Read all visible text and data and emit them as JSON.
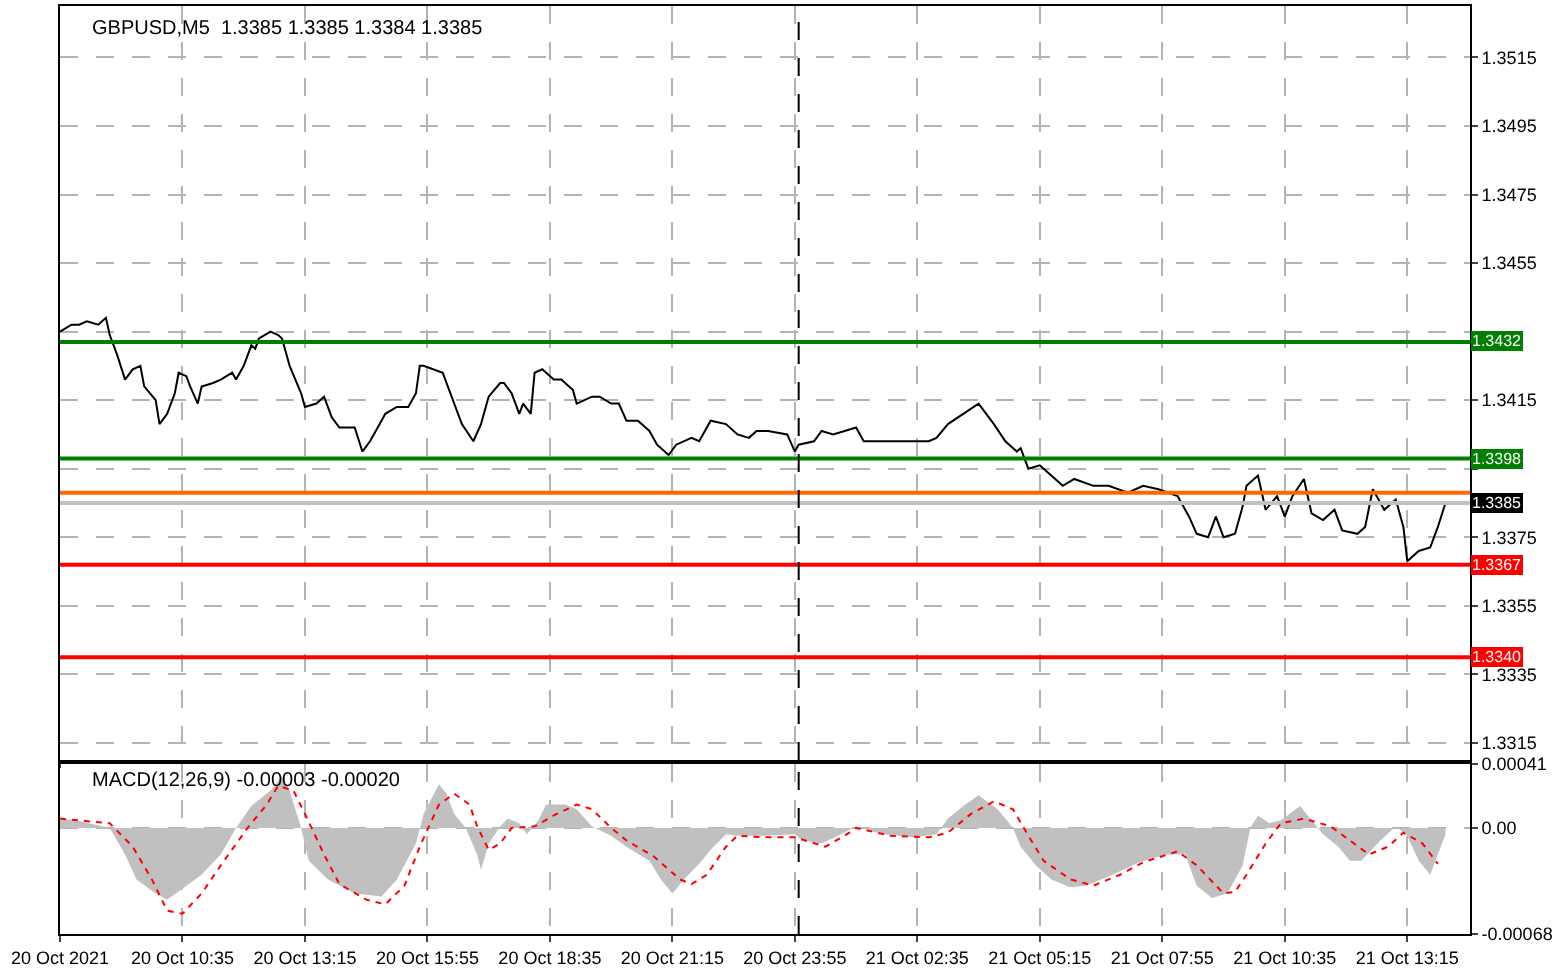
{
  "chart_data": [
    {
      "type": "line",
      "title": "GBPUSD,M5  1.3385 1.3385 1.3384 1.3385",
      "xlim": [
        "2021-10-20T07:55",
        "2021-10-21T14:37"
      ],
      "ylim": [
        1.331,
        1.353
      ],
      "xticks": [
        {
          "value": "2021-10-20T07:55",
          "label": null
        },
        {
          "value": "2021-10-20T10:35",
          "label": null
        },
        {
          "value": "2021-10-20T13:15",
          "label": null
        },
        {
          "value": "2021-10-20T15:55",
          "label": null
        },
        {
          "value": "2021-10-20T18:35",
          "label": null
        },
        {
          "value": "2021-10-20T21:15",
          "label": null
        },
        {
          "value": "2021-10-20T23:55",
          "label": null
        },
        {
          "value": "2021-10-21T02:35",
          "label": null
        },
        {
          "value": "2021-10-21T05:15",
          "label": null
        },
        {
          "value": "2021-10-21T07:55",
          "label": null
        },
        {
          "value": "2021-10-21T10:35",
          "label": null
        },
        {
          "value": "2021-10-21T13:15",
          "label": null
        }
      ],
      "yticks": [
        1.3515,
        1.3495,
        1.3475,
        1.3455,
        {
          "value": 1.3435,
          "label": null
        },
        1.3415,
        {
          "value": 1.3395,
          "label": null
        },
        1.3375,
        1.3355,
        1.3335,
        1.3315
      ],
      "tick_labels": "y",
      "grid": true,
      "series": [
        {
          "color": "#000000",
          "x": [
            "2021-10-20T07:55",
            "2021-10-20T08:10",
            "2021-10-20T08:20",
            "2021-10-20T08:30",
            "2021-10-20T08:45",
            "2021-10-20T08:55",
            "2021-10-20T09:00",
            "2021-10-20T09:10",
            "2021-10-20T09:20",
            "2021-10-20T09:30",
            "2021-10-20T09:40",
            "2021-10-20T09:45",
            "2021-10-20T10:00",
            "2021-10-20T10:05",
            "2021-10-20T10:15",
            "2021-10-20T10:25",
            "2021-10-20T10:30",
            "2021-10-20T10:40",
            "2021-10-20T10:45",
            "2021-10-20T10:55",
            "2021-10-20T11:00",
            "2021-10-20T11:15",
            "2021-10-20T11:25",
            "2021-10-20T11:40",
            "2021-10-20T11:45",
            "2021-10-20T11:55",
            "2021-10-20T12:05",
            "2021-10-20T12:10",
            "2021-10-20T12:15",
            "2021-10-20T12:30",
            "2021-10-20T12:40",
            "2021-10-20T12:45",
            "2021-10-20T12:55",
            "2021-10-20T13:10",
            "2021-10-20T13:15",
            "2021-10-20T13:30",
            "2021-10-20T13:40",
            "2021-10-20T13:50",
            "2021-10-20T14:00",
            "2021-10-20T14:20",
            "2021-10-20T14:30",
            "2021-10-20T14:40",
            "2021-10-20T14:55",
            "2021-10-20T15:00",
            "2021-10-20T15:15",
            "2021-10-20T15:30",
            "2021-10-20T15:40",
            "2021-10-20T15:45",
            "2021-10-20T15:50",
            "2021-10-20T16:15",
            "2021-10-20T16:25",
            "2021-10-20T16:40",
            "2021-10-20T16:55",
            "2021-10-20T17:05",
            "2021-10-20T17:15",
            "2021-10-20T17:30",
            "2021-10-20T17:35",
            "2021-10-20T17:45",
            "2021-10-20T17:55",
            "2021-10-20T18:00",
            "2021-10-20T18:10",
            "2021-10-20T18:15",
            "2021-10-20T18:25",
            "2021-10-20T18:40",
            "2021-10-20T18:50",
            "2021-10-20T19:00",
            "2021-10-20T19:05",
            "2021-10-20T19:10",
            "2021-10-20T19:30",
            "2021-10-20T19:40",
            "2021-10-20T19:55",
            "2021-10-20T20:05",
            "2021-10-20T20:15",
            "2021-10-20T20:30",
            "2021-10-20T20:45",
            "2021-10-20T20:55",
            "2021-10-20T21:10",
            "2021-10-20T21:20",
            "2021-10-20T21:40",
            "2021-10-20T21:50",
            "2021-10-20T22:05",
            "2021-10-20T22:25",
            "2021-10-20T22:40",
            "2021-10-20T22:55",
            "2021-10-20T23:05",
            "2021-10-20T23:20",
            "2021-10-20T23:45",
            "2021-10-20T23:55",
            "2021-10-21T00:00",
            "2021-10-21T00:20",
            "2021-10-21T00:30",
            "2021-10-21T00:45",
            "2021-10-21T01:00",
            "2021-10-21T01:15",
            "2021-10-21T01:25",
            "2021-10-21T01:45",
            "2021-10-21T02:30",
            "2021-10-21T02:50",
            "2021-10-21T03:00",
            "2021-10-21T03:15",
            "2021-10-21T03:35",
            "2021-10-21T03:55",
            "2021-10-21T04:05",
            "2021-10-21T04:15",
            "2021-10-21T04:30",
            "2021-10-21T04:45",
            "2021-10-21T04:50",
            "2021-10-21T05:00",
            "2021-10-21T05:15",
            "2021-10-21T05:30",
            "2021-10-21T05:45",
            "2021-10-21T06:00",
            "2021-10-21T06:25",
            "2021-10-21T06:45",
            "2021-10-21T07:10",
            "2021-10-21T07:30",
            "2021-10-21T07:50",
            "2021-10-21T08:15",
            "2021-10-21T08:30",
            "2021-10-21T08:40",
            "2021-10-21T08:55",
            "2021-10-21T09:05",
            "2021-10-21T09:15",
            "2021-10-21T09:30",
            "2021-10-21T09:40",
            "2021-10-21T09:45",
            "2021-10-21T10:00",
            "2021-10-21T10:10",
            "2021-10-21T10:25",
            "2021-10-21T10:35",
            "2021-10-21T10:45",
            "2021-10-21T11:00",
            "2021-10-21T11:10",
            "2021-10-21T11:25",
            "2021-10-21T11:40",
            "2021-10-21T11:50",
            "2021-10-21T12:10",
            "2021-10-21T12:20",
            "2021-10-21T12:30",
            "2021-10-21T12:45",
            "2021-10-21T13:00",
            "2021-10-21T13:10",
            "2021-10-21T13:15",
            "2021-10-21T13:30",
            "2021-10-21T13:45",
            "2021-10-21T13:55",
            "2021-10-21T14:05"
          ],
          "values": [
            1.3435,
            1.3437,
            1.3437,
            1.3438,
            1.3437,
            1.3439,
            1.3434,
            1.3428,
            1.3421,
            1.3424,
            1.3425,
            1.3419,
            1.3415,
            1.3408,
            1.3411,
            1.3417,
            1.3423,
            1.3422,
            1.3419,
            1.3414,
            1.3419,
            1.342,
            1.3421,
            1.3423,
            1.3421,
            1.3425,
            1.3431,
            1.343,
            1.3433,
            1.3435,
            1.3434,
            1.3433,
            1.3425,
            1.3417,
            1.3413,
            1.3414,
            1.3416,
            1.341,
            1.3407,
            1.3407,
            1.34,
            1.3403,
            1.3409,
            1.3411,
            1.3413,
            1.3413,
            1.3417,
            1.3425,
            1.3425,
            1.3423,
            1.3417,
            1.3408,
            1.3403,
            1.3408,
            1.3416,
            1.342,
            1.342,
            1.3417,
            1.3411,
            1.3414,
            1.3411,
            1.3423,
            1.3424,
            1.3421,
            1.3421,
            1.3419,
            1.3418,
            1.3414,
            1.3416,
            1.3416,
            1.3414,
            1.3414,
            1.3409,
            1.3409,
            1.3406,
            1.3402,
            1.3399,
            1.3402,
            1.3404,
            1.3403,
            1.3409,
            1.3408,
            1.3405,
            1.3404,
            1.3406,
            1.3406,
            1.3405,
            1.34,
            1.3402,
            1.3403,
            1.3406,
            1.3405,
            1.3406,
            1.3407,
            1.3403,
            1.3403,
            1.3403,
            1.3403,
            1.3404,
            1.3408,
            1.3411,
            1.3414,
            1.3411,
            1.3408,
            1.3403,
            1.34,
            1.3401,
            1.3395,
            1.3396,
            1.3393,
            1.339,
            1.3392,
            1.339,
            1.339,
            1.3388,
            1.339,
            1.3389,
            1.3387,
            1.3381,
            1.3376,
            1.3375,
            1.3381,
            1.3375,
            1.3376,
            1.3384,
            1.339,
            1.3393,
            1.3383,
            1.3387,
            1.3381,
            1.3387,
            1.3392,
            1.3382,
            1.338,
            1.3383,
            1.3377,
            1.3376,
            1.3378,
            1.3389,
            1.3383,
            1.3386,
            1.3378,
            1.3368,
            1.3371,
            1.3372,
            1.3378,
            1.3385
          ]
        }
      ],
      "ref_lines": [
        {
          "axis": "y",
          "value": 1.3432,
          "label": "1.3432",
          "color": "#008000"
        },
        {
          "axis": "y",
          "value": 1.3398,
          "label": "1.3398",
          "color": "#008000"
        },
        {
          "axis": "y",
          "value": 1.3388,
          "label": null,
          "color": "#ff6600"
        },
        {
          "axis": "y",
          "value": 1.3385,
          "label": "1.3385",
          "color": "#c0c0c0"
        },
        {
          "axis": "y",
          "value": 1.3367,
          "label": "1.3367",
          "color": "#ff0000"
        },
        {
          "axis": "y",
          "value": 1.334,
          "label": "1.3340",
          "color": "#ff0000"
        },
        {
          "axis": "x",
          "value": "2021-10-21T00:00",
          "label": null,
          "color": "#000000",
          "line_style": "dashed"
        }
      ]
    },
    {
      "type": "area",
      "title": "MACD(12,26,9) -0.00003 -0.00020",
      "xlim": [
        "2021-10-20T07:55",
        "2021-10-21T14:37"
      ],
      "ylim": [
        -0.00068,
        0.00041
      ],
      "xticks": [
        {
          "value": "2021-10-20T07:55",
          "label": "20 Oct 2021"
        },
        {
          "value": "2021-10-20T10:35",
          "label": "20 Oct 10:35"
        },
        {
          "value": "2021-10-20T13:15",
          "label": "20 Oct 13:15"
        },
        {
          "value": "2021-10-20T15:55",
          "label": "20 Oct 15:55"
        },
        {
          "value": "2021-10-20T18:35",
          "label": "20 Oct 18:35"
        },
        {
          "value": "2021-10-20T21:15",
          "label": "20 Oct 21:15"
        },
        {
          "value": "2021-10-20T23:55",
          "label": "20 Oct 23:55"
        },
        {
          "value": "2021-10-21T02:35",
          "label": "21 Oct 02:35"
        },
        {
          "value": "2021-10-21T05:15",
          "label": "21 Oct 05:15"
        },
        {
          "value": "2021-10-21T07:55",
          "label": "21 Oct 07:55"
        },
        {
          "value": "2021-10-21T10:35",
          "label": "21 Oct 10:35"
        },
        {
          "value": "2021-10-21T13:15",
          "label": "21 Oct 13:15"
        }
      ],
      "yticks": [
        0.00041,
        {
          "value": 0,
          "label": "0.00"
        },
        -0.00068
      ],
      "grid": true,
      "series": [
        {
          "type": "area",
          "color": "#c0c0c0",
          "x": [
            "2021-10-20T07:55",
            "2021-10-20T08:15",
            "2021-10-20T09:00",
            "2021-10-20T09:20",
            "2021-10-20T09:35",
            "2021-10-20T10:00",
            "2021-10-20T10:15",
            "2021-10-20T11:00",
            "2021-10-20T11:25",
            "2021-10-20T11:45",
            "2021-10-20T12:05",
            "2021-10-20T12:30",
            "2021-10-20T12:45",
            "2021-10-20T12:55",
            "2021-10-20T13:10",
            "2021-10-20T13:20",
            "2021-10-20T13:45",
            "2021-10-20T14:20",
            "2021-10-20T14:55",
            "2021-10-20T15:15",
            "2021-10-20T15:40",
            "2021-10-20T15:50",
            "2021-10-20T16:10",
            "2021-10-20T16:20",
            "2021-10-20T16:30",
            "2021-10-20T16:45",
            "2021-10-20T17:00",
            "2021-10-20T17:05",
            "2021-10-20T17:15",
            "2021-10-20T17:30",
            "2021-10-20T17:40",
            "2021-10-20T17:55",
            "2021-10-20T18:05",
            "2021-10-20T18:20",
            "2021-10-20T18:30",
            "2021-10-20T18:55",
            "2021-10-20T19:10",
            "2021-10-20T19:30",
            "2021-10-20T19:55",
            "2021-10-20T20:15",
            "2021-10-20T20:45",
            "2021-10-20T21:00",
            "2021-10-20T21:15",
            "2021-10-20T21:30",
            "2021-10-20T21:50",
            "2021-10-20T22:05",
            "2021-10-20T22:25",
            "2021-10-20T22:40",
            "2021-10-20T23:15",
            "2021-10-20T23:55",
            "2021-10-21T00:05",
            "2021-10-21T00:30",
            "2021-10-21T00:55",
            "2021-10-21T01:15",
            "2021-10-21T01:50",
            "2021-10-21T02:30",
            "2021-10-21T03:00",
            "2021-10-21T03:15",
            "2021-10-21T03:35",
            "2021-10-21T03:55",
            "2021-10-21T04:20",
            "2021-10-21T04:40",
            "2021-10-21T04:50",
            "2021-10-21T05:10",
            "2021-10-21T05:30",
            "2021-10-21T05:55",
            "2021-10-21T06:15",
            "2021-10-21T06:50",
            "2021-10-21T07:25",
            "2021-10-21T08:00",
            "2021-10-21T08:25",
            "2021-10-21T08:40",
            "2021-10-21T09:00",
            "2021-10-21T09:20",
            "2021-10-21T09:40",
            "2021-10-21T09:50",
            "2021-10-21T10:00",
            "2021-10-21T10:15",
            "2021-10-21T10:30",
            "2021-10-21T10:55",
            "2021-10-21T11:10",
            "2021-10-21T11:25",
            "2021-10-21T11:45",
            "2021-10-21T12:00",
            "2021-10-21T12:15",
            "2021-10-21T12:40",
            "2021-10-21T13:00",
            "2021-10-21T13:15",
            "2021-10-21T13:30",
            "2021-10-21T13:45",
            "2021-10-21T13:55",
            "2021-10-21T14:05"
          ],
          "values": [
            6e-05,
            5e-05,
            0,
            -0.00017,
            -0.00033,
            -0.00042,
            -0.00046,
            -0.0003,
            -0.00017,
            0,
            0.00014,
            0.00024,
            0.00033,
            0.00024,
            0,
            -0.00021,
            -0.00033,
            -0.00042,
            -0.00044,
            -0.00033,
            -0.0001,
            9e-05,
            0.00028,
            0.00022,
            9e-05,
            0,
            -0.00017,
            -0.00027,
            -0.0001,
            1e-05,
            6e-05,
            3e-05,
            -4e-05,
            5e-05,
            0.00015,
            0.00015,
            0.00012,
            1e-05,
            -5e-05,
            -0.00012,
            -0.00021,
            -0.00033,
            -0.00042,
            -0.00033,
            -0.00023,
            -0.00014,
            -4e-05,
            -5e-05,
            -5e-05,
            -4e-05,
            -8e-05,
            -0.0001,
            -4e-05,
            1e-05,
            -4e-05,
            -6e-05,
            -4e-05,
            6e-05,
            0.00014,
            0.00021,
            0.00012,
            0,
            -0.00012,
            -0.00024,
            -0.00033,
            -0.00038,
            -0.00037,
            -0.0003,
            -0.00022,
            -0.00017,
            -0.00017,
            -0.00037,
            -0.00045,
            -0.00042,
            -0.00024,
            0,
            8e-05,
            3e-05,
            5e-05,
            0.00014,
            5e-05,
            -4e-05,
            -0.00012,
            -0.00021,
            -0.00021,
            -8e-05,
            1e-05,
            -5e-05,
            -0.00021,
            -0.0003,
            -0.00017,
            -4e-05
          ]
        },
        {
          "type": "line",
          "color": "#ff0000",
          "line_style": "dotted",
          "x": [
            "2021-10-20T07:55",
            "2021-10-20T09:00",
            "2021-10-20T09:30",
            "2021-10-20T09:55",
            "2021-10-20T10:15",
            "2021-10-20T10:35",
            "2021-10-20T11:00",
            "2021-10-20T11:25",
            "2021-10-20T12:00",
            "2021-10-20T12:25",
            "2021-10-20T12:40",
            "2021-10-20T13:00",
            "2021-10-20T13:15",
            "2021-10-20T13:40",
            "2021-10-20T14:00",
            "2021-10-20T14:35",
            "2021-10-20T15:00",
            "2021-10-20T15:25",
            "2021-10-20T15:45",
            "2021-10-20T16:10",
            "2021-10-20T16:30",
            "2021-10-20T16:50",
            "2021-10-20T17:00",
            "2021-10-20T17:15",
            "2021-10-20T17:30",
            "2021-10-20T17:45",
            "2021-10-20T18:15",
            "2021-10-20T18:40",
            "2021-10-20T19:10",
            "2021-10-20T19:30",
            "2021-10-20T19:55",
            "2021-10-20T20:15",
            "2021-10-20T20:50",
            "2021-10-20T21:25",
            "2021-10-20T21:40",
            "2021-10-20T22:00",
            "2021-10-20T22:25",
            "2021-10-20T22:40",
            "2021-10-20T23:15",
            "2021-10-20T23:55",
            "2021-10-21T00:35",
            "2021-10-21T01:00",
            "2021-10-21T01:15",
            "2021-10-21T02:00",
            "2021-10-21T02:50",
            "2021-10-21T03:15",
            "2021-10-21T03:45",
            "2021-10-21T04:15",
            "2021-10-21T04:40",
            "2021-10-21T05:00",
            "2021-10-21T05:20",
            "2021-10-21T05:55",
            "2021-10-21T06:25",
            "2021-10-21T07:00",
            "2021-10-21T07:30",
            "2021-10-21T08:15",
            "2021-10-21T08:40",
            "2021-10-21T09:15",
            "2021-10-21T09:30",
            "2021-10-21T09:45",
            "2021-10-21T10:10",
            "2021-10-21T10:30",
            "2021-10-21T11:00",
            "2021-10-21T11:35",
            "2021-10-21T12:00",
            "2021-10-21T12:25",
            "2021-10-21T12:50",
            "2021-10-21T13:10",
            "2021-10-21T13:35",
            "2021-10-21T13:55"
          ],
          "values": [
            6e-05,
            3e-05,
            -0.00012,
            -0.00033,
            -0.00053,
            -0.00055,
            -0.00042,
            -0.00024,
            0,
            0.00015,
            0.00027,
            0.00024,
            9e-05,
            -0.00017,
            -0.00036,
            -0.00046,
            -0.00049,
            -0.00037,
            -0.00012,
            0.00015,
            0.00022,
            0.00015,
            1e-05,
            -0.00014,
            -0.0001,
            0,
            1e-05,
            8e-05,
            0.00015,
            0.00012,
            0,
            -8e-05,
            -0.00018,
            -0.00033,
            -0.00036,
            -0.0003,
            -0.00012,
            -5e-05,
            -6e-05,
            -6e-05,
            -0.00012,
            -5e-05,
            0,
            -5e-05,
            -6e-05,
            -3e-05,
            9e-05,
            0.00017,
            0.00012,
            -5e-05,
            -0.00021,
            -0.00033,
            -0.00037,
            -0.0003,
            -0.00022,
            -0.00015,
            -0.00024,
            -0.00042,
            -0.00041,
            -0.0003,
            -0.0001,
            3e-05,
            6e-05,
            1e-05,
            -8e-05,
            -0.00017,
            -0.00012,
            -3e-05,
            -0.0001,
            -0.00023
          ]
        }
      ],
      "ref_lines": [
        {
          "axis": "x",
          "value": "2021-10-21T00:00",
          "label": null,
          "color": "#000000",
          "line_style": "dashed"
        }
      ]
    }
  ]
}
